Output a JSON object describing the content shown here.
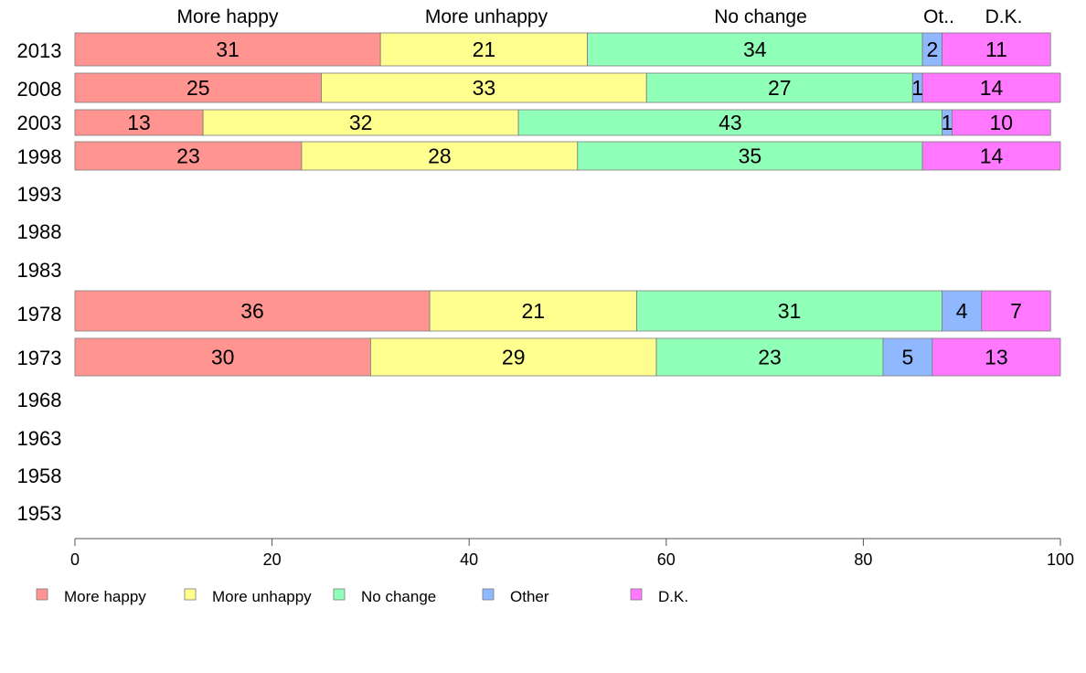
{
  "chart_data": {
    "type": "bar",
    "orientation": "horizontal",
    "stacked": true,
    "xlim": [
      0,
      100
    ],
    "x_ticks": [
      0,
      20,
      40,
      60,
      80,
      100
    ],
    "categories": [
      "2013",
      "2008",
      "2003",
      "1998",
      "1993",
      "1988",
      "1983",
      "1978",
      "1973",
      "1968",
      "1963",
      "1958",
      "1953"
    ],
    "top_labels": [
      "More happy",
      "More unhappy",
      "No change",
      "Ot..",
      "D.K."
    ],
    "series": [
      {
        "name": "More happy",
        "color": "#FF9490",
        "values": [
          31,
          25,
          13,
          23,
          null,
          null,
          null,
          36,
          30,
          null,
          null,
          null,
          null
        ]
      },
      {
        "name": "More unhappy",
        "color": "#FFFF90",
        "values": [
          21,
          33,
          32,
          28,
          null,
          null,
          null,
          21,
          29,
          null,
          null,
          null,
          null
        ]
      },
      {
        "name": "No change",
        "color": "#90FFB8",
        "values": [
          34,
          27,
          43,
          35,
          null,
          null,
          null,
          31,
          23,
          null,
          null,
          null,
          null
        ]
      },
      {
        "name": "Other",
        "color": "#90B8FF",
        "values": [
          2,
          1,
          1,
          0,
          null,
          null,
          null,
          4,
          5,
          null,
          null,
          null,
          null
        ]
      },
      {
        "name": "D.K.",
        "color": "#FF78FF",
        "values": [
          11,
          14,
          10,
          14,
          null,
          null,
          null,
          7,
          13,
          null,
          null,
          null,
          null
        ]
      }
    ],
    "legend_position": "bottom-left",
    "grid": false
  }
}
